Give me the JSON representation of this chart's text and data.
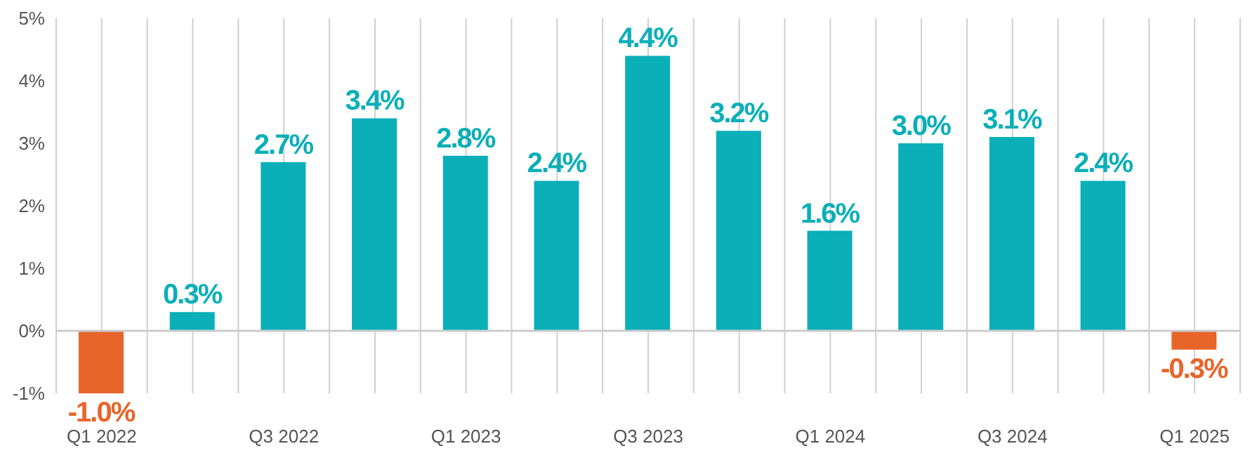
{
  "chart_data": {
    "type": "bar",
    "categories": [
      "Q1 2022",
      null,
      "Q3 2022",
      null,
      "Q1 2023",
      null,
      "Q3 2023",
      null,
      "Q1 2024",
      null,
      "Q3 2024",
      null,
      "Q1 2025"
    ],
    "values": [
      -1.0,
      0.3,
      2.7,
      3.4,
      2.8,
      2.4,
      4.4,
      3.2,
      1.6,
      3.0,
      3.1,
      2.4,
      -0.3
    ],
    "colors": [
      "#e8652a",
      "#0aafb8",
      "#0aafb8",
      "#0aafb8",
      "#0aafb8",
      "#0aafb8",
      "#0aafb8",
      "#0aafb8",
      "#0aafb8",
      "#0aafb8",
      "#0aafb8",
      "#0aafb8",
      "#e8652a"
    ],
    "value_labels": [
      "-1.0%",
      "0.3%",
      "2.7%",
      "3.4%",
      "2.8%",
      "2.4%",
      "4.4%",
      "3.2%",
      "1.6%",
      "3.0%",
      "3.1%",
      "2.4%",
      "-0.3%"
    ],
    "ylim": [
      -1,
      5
    ],
    "yticks": [
      {
        "value": -1,
        "label": "-1%"
      },
      {
        "value": 0,
        "label": "0%"
      },
      {
        "value": 1,
        "label": "1%"
      },
      {
        "value": 2,
        "label": "2%"
      },
      {
        "value": 3,
        "label": "3%"
      },
      {
        "value": 4,
        "label": "4%"
      },
      {
        "value": 5,
        "label": "5%"
      }
    ],
    "ref_lines": [
      {
        "axis": "y",
        "value": 0,
        "color": "#cccccc"
      }
    ],
    "grid": "x"
  }
}
